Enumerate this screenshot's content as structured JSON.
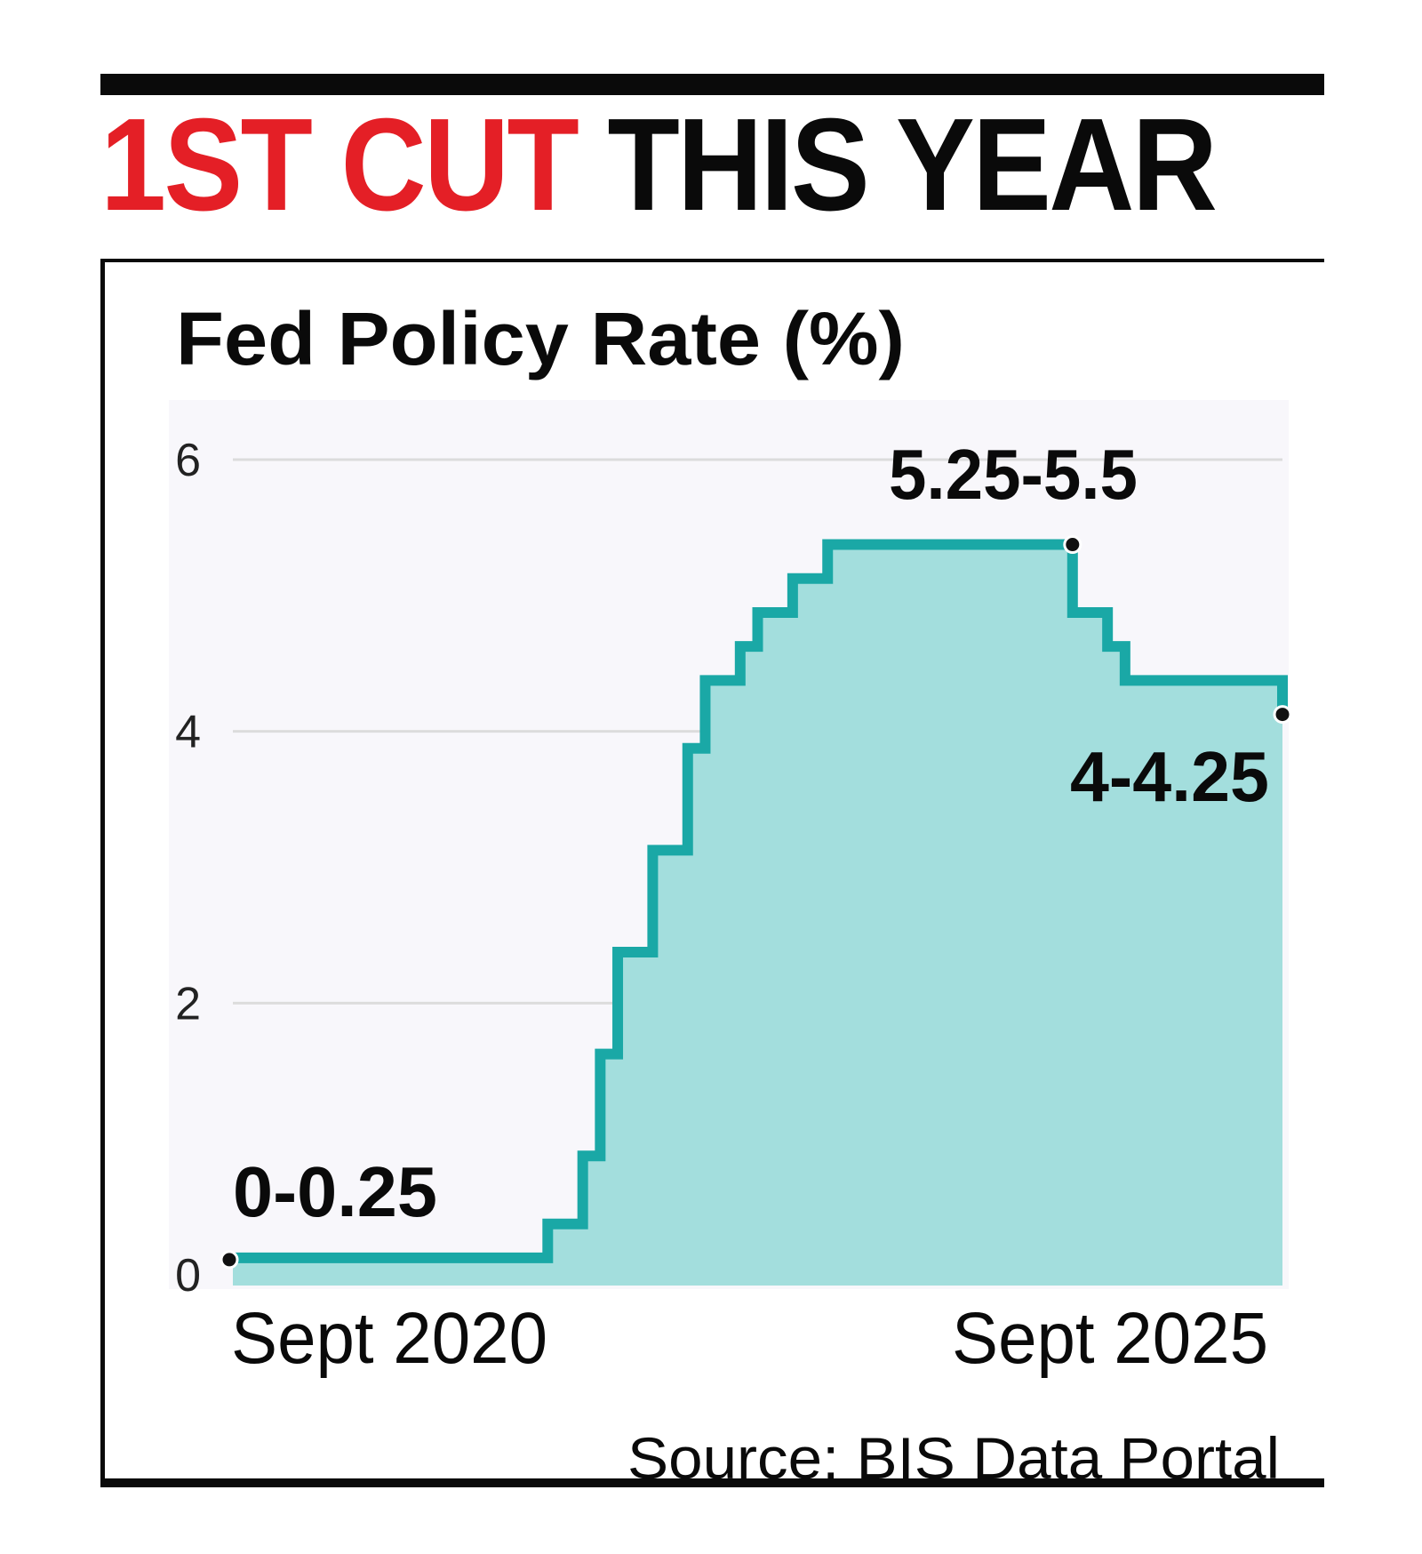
{
  "headline": {
    "highlight": "1ST CUT",
    "rest": "THIS YEAR"
  },
  "colors": {
    "highlight": "#e41f26",
    "line": "#1aa8a6",
    "fill": "#a3dedd",
    "plot_bg": "#f8f7fb",
    "grid": "#dcdcdc"
  },
  "chart_data": {
    "type": "area",
    "title": "Fed Policy Rate (%)",
    "xlabel": "",
    "ylabel": "",
    "x_tick_labels": [
      "Sept 2020",
      "Sept 2025"
    ],
    "xlim": [
      "2020-09",
      "2025-09"
    ],
    "ylim": [
      0,
      6
    ],
    "y_ticks": [
      0,
      2,
      4,
      6
    ],
    "grid": true,
    "step": true,
    "series": [
      {
        "points": [
          [
            "2020-09",
            0.125
          ],
          [
            "2022-03",
            0.375
          ],
          [
            "2022-05",
            0.875
          ],
          [
            "2022-06",
            1.625
          ],
          [
            "2022-07",
            2.375
          ],
          [
            "2022-09",
            3.125
          ],
          [
            "2022-11",
            3.875
          ],
          [
            "2022-12",
            4.375
          ],
          [
            "2023-02",
            4.625
          ],
          [
            "2023-03",
            4.875
          ],
          [
            "2023-05",
            5.125
          ],
          [
            "2023-07",
            5.375
          ],
          [
            "2024-09",
            4.875
          ],
          [
            "2024-11",
            4.625
          ],
          [
            "2024-12",
            4.375
          ],
          [
            "2025-09",
            4.125
          ]
        ]
      }
    ],
    "annotations": [
      {
        "text": "0-0.25",
        "x": "2020-09",
        "y": 0.125
      },
      {
        "text": "5.25-5.5",
        "x": "2024-09",
        "y": 5.375
      },
      {
        "text": "4-4.25",
        "x": "2025-09",
        "y": 4.125
      }
    ],
    "source": "Source: BIS Data Portal"
  }
}
